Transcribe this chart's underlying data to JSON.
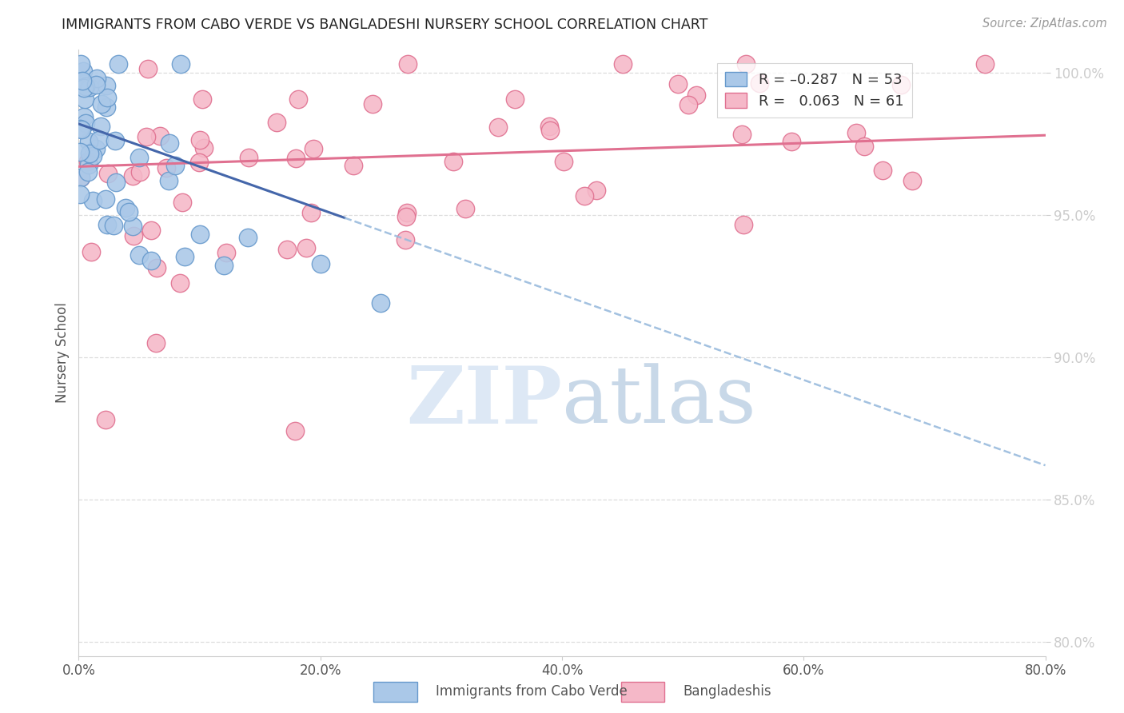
{
  "title": "IMMIGRANTS FROM CABO VERDE VS BANGLADESHI NURSERY SCHOOL CORRELATION CHART",
  "source": "Source: ZipAtlas.com",
  "ylabel": "Nursery School",
  "xmin": 0.0,
  "xmax": 0.8,
  "ymin": 0.795,
  "ymax": 1.008,
  "yticks": [
    0.8,
    0.85,
    0.9,
    0.95,
    1.0
  ],
  "xticks": [
    0.0,
    0.2,
    0.4,
    0.6,
    0.8
  ],
  "blue_R": -0.287,
  "blue_N": 53,
  "pink_R": 0.063,
  "pink_N": 61,
  "blue_color": "#aac8e8",
  "pink_color": "#f5b8c8",
  "blue_edge": "#6699cc",
  "pink_edge": "#e07090",
  "trendline_blue_solid": "#4466aa",
  "trendline_blue_dash": "#99bbdd",
  "trendline_pink": "#e07090",
  "watermark_color": "#dde8f5",
  "legend_label_blue": "Immigrants from Cabo Verde",
  "legend_label_pink": "Bangladeshis",
  "grid_color": "#dddddd",
  "axis_color": "#cccccc",
  "tick_color_right": "#4499cc"
}
